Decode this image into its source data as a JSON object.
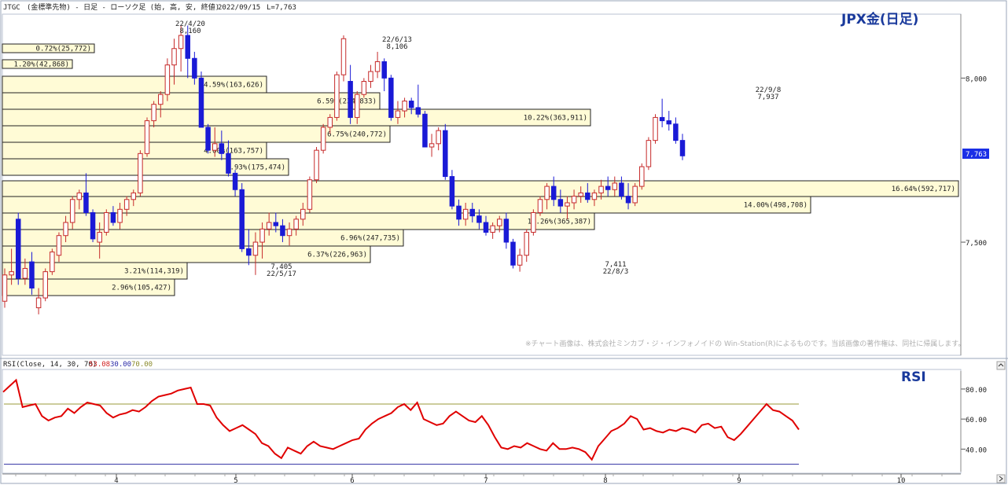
{
  "header": {
    "code": "JTGC",
    "info": "(金標準先物) - 日足 - ローソク足 (始, 高, 安, 終値)",
    "date": "2022/09/15",
    "last": "L=7,763",
    "panel_title": "JPX金(日足)"
  },
  "rsi_header": {
    "label": "RSI(Close, 14, 30, 70)",
    "v1": "53.08",
    "v2": "30.00",
    "v3": "70.00",
    "panel_title": "RSI"
  },
  "copyright": "※チャート画像は、株式会社ミンカブ・ジ・インフォノイドの Win-Station(R)によるものです。当該画像の著作権は、同社に帰属します。",
  "colors": {
    "up": "#c62a2a",
    "down": "#1a1ad6",
    "vp_fill": "#fffbd6",
    "rsi_line": "#e00000",
    "rsi_70": "#9a9a3a",
    "rsi_30": "#3a3aa8",
    "last_badge": "#1a2ee6"
  },
  "chart_data": [
    {
      "type": "candlestick",
      "title": "JPX金(日足)",
      "y_ticks": [
        "8,000",
        "7,500"
      ],
      "ylim": [
        7160,
        8190
      ],
      "last_price_label": "7,763",
      "x_month_labels": [
        "4",
        "5",
        "6",
        "7",
        "8",
        "9",
        "10"
      ],
      "candles_ohlc": [
        [
          7320,
          7420,
          7300,
          7400
        ],
        [
          7400,
          7480,
          7370,
          7410
        ],
        [
          7570,
          7590,
          7370,
          7390
        ],
        [
          7390,
          7450,
          7370,
          7420
        ],
        [
          7440,
          7470,
          7340,
          7360
        ],
        [
          7300,
          7360,
          7280,
          7330
        ],
        [
          7330,
          7420,
          7320,
          7410
        ],
        [
          7410,
          7480,
          7400,
          7470
        ],
        [
          7460,
          7530,
          7440,
          7520
        ],
        [
          7520,
          7580,
          7500,
          7560
        ],
        [
          7560,
          7640,
          7540,
          7630
        ],
        [
          7630,
          7660,
          7600,
          7650
        ],
        [
          7650,
          7710,
          7580,
          7590
        ],
        [
          7590,
          7600,
          7500,
          7510
        ],
        [
          7500,
          7560,
          7450,
          7530
        ],
        [
          7530,
          7600,
          7520,
          7590
        ],
        [
          7590,
          7610,
          7550,
          7560
        ],
        [
          7560,
          7620,
          7540,
          7600
        ],
        [
          7600,
          7640,
          7580,
          7630
        ],
        [
          7630,
          7660,
          7610,
          7650
        ],
        [
          7650,
          7780,
          7640,
          7770
        ],
        [
          7770,
          7880,
          7760,
          7870
        ],
        [
          7870,
          7930,
          7850,
          7920
        ],
        [
          7920,
          7960,
          7880,
          7950
        ],
        [
          7950,
          8060,
          7930,
          8040
        ],
        [
          8040,
          8120,
          7980,
          8090
        ],
        [
          8090,
          8160,
          8020,
          8130
        ],
        [
          8130,
          8160,
          8000,
          8060
        ],
        [
          8060,
          8080,
          7980,
          8000
        ],
        [
          8000,
          8020,
          7850,
          7850
        ],
        [
          7850,
          7860,
          7770,
          7780
        ],
        [
          7780,
          7850,
          7760,
          7800
        ],
        [
          7800,
          7840,
          7750,
          7770
        ],
        [
          7770,
          7810,
          7700,
          7710
        ],
        [
          7710,
          7720,
          7640,
          7660
        ],
        [
          7660,
          7680,
          7470,
          7480
        ],
        [
          7480,
          7540,
          7430,
          7460
        ],
        [
          7460,
          7530,
          7400,
          7500
        ],
        [
          7500,
          7560,
          7450,
          7540
        ],
        [
          7540,
          7590,
          7520,
          7560
        ],
        [
          7560,
          7590,
          7530,
          7550
        ],
        [
          7550,
          7570,
          7500,
          7520
        ],
        [
          7520,
          7560,
          7490,
          7540
        ],
        [
          7540,
          7580,
          7520,
          7570
        ],
        [
          7570,
          7620,
          7550,
          7600
        ],
        [
          7600,
          7700,
          7590,
          7690
        ],
        [
          7690,
          7790,
          7680,
          7780
        ],
        [
          7780,
          7860,
          7770,
          7850
        ],
        [
          7850,
          7890,
          7830,
          7880
        ],
        [
          7880,
          8020,
          7870,
          8010
        ],
        [
          8010,
          8130,
          7990,
          8120
        ],
        [
          7990,
          8040,
          7860,
          7880
        ],
        [
          7880,
          7960,
          7860,
          7950
        ],
        [
          7950,
          8000,
          7940,
          7990
        ],
        [
          7990,
          8040,
          7970,
          8020
        ],
        [
          8020,
          8080,
          8000,
          8050
        ],
        [
          8050,
          8060,
          7960,
          8000
        ],
        [
          8000,
          8010,
          7870,
          7880
        ],
        [
          7880,
          7930,
          7860,
          7900
        ],
        [
          7900,
          7940,
          7880,
          7930
        ],
        [
          7930,
          7940,
          7890,
          7910
        ],
        [
          7910,
          7980,
          7880,
          7890
        ],
        [
          7890,
          7900,
          7790,
          7790
        ],
        [
          7790,
          7830,
          7760,
          7800
        ],
        [
          7800,
          7850,
          7780,
          7840
        ],
        [
          7840,
          7860,
          7690,
          7700
        ],
        [
          7700,
          7720,
          7600,
          7610
        ],
        [
          7610,
          7630,
          7550,
          7570
        ],
        [
          7570,
          7620,
          7550,
          7600
        ],
        [
          7600,
          7620,
          7560,
          7580
        ],
        [
          7580,
          7600,
          7540,
          7560
        ],
        [
          7560,
          7580,
          7520,
          7530
        ],
        [
          7530,
          7560,
          7510,
          7550
        ],
        [
          7550,
          7580,
          7530,
          7570
        ],
        [
          7570,
          7590,
          7480,
          7500
        ],
        [
          7500,
          7510,
          7420,
          7430
        ],
        [
          7430,
          7480,
          7410,
          7460
        ],
        [
          7460,
          7540,
          7440,
          7530
        ],
        [
          7530,
          7600,
          7520,
          7590
        ],
        [
          7590,
          7640,
          7580,
          7630
        ],
        [
          7630,
          7680,
          7600,
          7670
        ],
        [
          7670,
          7700,
          7610,
          7630
        ],
        [
          7630,
          7660,
          7590,
          7610
        ],
        [
          7610,
          7640,
          7570,
          7620
        ],
        [
          7620,
          7660,
          7600,
          7640
        ],
        [
          7640,
          7670,
          7620,
          7650
        ],
        [
          7650,
          7680,
          7620,
          7630
        ],
        [
          7630,
          7660,
          7610,
          7650
        ],
        [
          7650,
          7690,
          7630,
          7670
        ],
        [
          7670,
          7700,
          7640,
          7660
        ],
        [
          7660,
          7700,
          7640,
          7680
        ],
        [
          7680,
          7700,
          7630,
          7640
        ],
        [
          7640,
          7680,
          7600,
          7620
        ],
        [
          7620,
          7680,
          7610,
          7670
        ],
        [
          7670,
          7740,
          7660,
          7730
        ],
        [
          7730,
          7820,
          7720,
          7810
        ],
        [
          7810,
          7890,
          7800,
          7880
        ],
        [
          7880,
          7937,
          7850,
          7870
        ],
        [
          7870,
          7900,
          7840,
          7860
        ],
        [
          7860,
          7880,
          7800,
          7810
        ],
        [
          7810,
          7830,
          7750,
          7763
        ]
      ],
      "volume_profile": [
        {
          "label": "0.72%(25,772)"
        },
        {
          "label": "1.20%(42,868)"
        },
        {
          "label": "4.59%(163,626)"
        },
        {
          "label": "6.59%(234,833)"
        },
        {
          "label": "10.22%(363,911)"
        },
        {
          "label": "6.75%(240,772)"
        },
        {
          "label": "4.60%(163,757)"
        },
        {
          "label": "4.93%(175,474)"
        },
        {
          "label": "16.64%(592,717)"
        },
        {
          "label": "14.00%(498,708)"
        },
        {
          "label": "10.26%(365,387)"
        },
        {
          "label": "6.96%(247,735)"
        },
        {
          "label": "6.37%(226,963)"
        },
        {
          "label": "3.21%(114,319)"
        },
        {
          "label": "2.96%(105,427)"
        }
      ],
      "annotations": [
        {
          "date": "22/4/20",
          "price": "8,160"
        },
        {
          "date": "22/6/13",
          "price": "8,106"
        },
        {
          "date": "22/9/8",
          "price": "7,937"
        },
        {
          "date": "22/5/17",
          "price": "7,405"
        },
        {
          "date": "22/8/3",
          "price": "7,411"
        }
      ]
    },
    {
      "type": "line",
      "title": "RSI",
      "y_ticks": [
        "80.00",
        "60.00",
        "40.00"
      ],
      "ylim": [
        25,
        92
      ],
      "ref_lines": [
        70,
        30
      ],
      "x_month_labels": [
        "4",
        "5",
        "6",
        "7",
        "8",
        "9",
        "10"
      ],
      "values": [
        78,
        82,
        86,
        68,
        69,
        70,
        62,
        59,
        61,
        62,
        67,
        64,
        68,
        71,
        70,
        69,
        64,
        61,
        63,
        64,
        66,
        65,
        68,
        72,
        75,
        76,
        77,
        79,
        80,
        81,
        70,
        70,
        69,
        61,
        56,
        52,
        54,
        56,
        53,
        50,
        44,
        42,
        37,
        34,
        41,
        39,
        37,
        42,
        45,
        42,
        41,
        40,
        42,
        44,
        46,
        47,
        53,
        57,
        60,
        62,
        64,
        68,
        70,
        66,
        71,
        60,
        58,
        56,
        57,
        62,
        65,
        62,
        59,
        58,
        62,
        56,
        48,
        41,
        40,
        42,
        41,
        44,
        42,
        40,
        39,
        44,
        40,
        40,
        41,
        40,
        38,
        33,
        42,
        47,
        52,
        54,
        57,
        62,
        60,
        53,
        54,
        52,
        51,
        53,
        52,
        54,
        53,
        51,
        56,
        57,
        54,
        55,
        48,
        46,
        50,
        55,
        60,
        65,
        70,
        66,
        65,
        62,
        59,
        53
      ]
    }
  ]
}
